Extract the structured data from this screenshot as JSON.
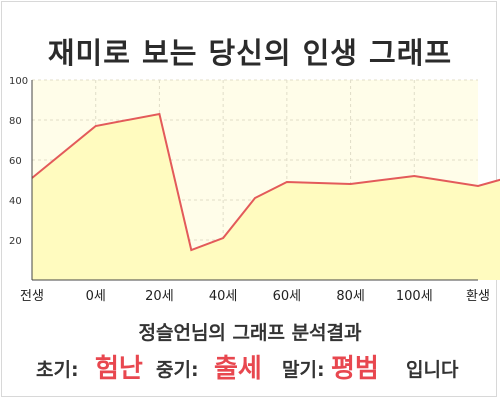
{
  "title": "재미로 보는 당신의 인생 그래프",
  "chart_data": {
    "type": "area",
    "x_ticks": [
      "전생",
      "0세",
      "20세",
      "40세",
      "60세",
      "80세",
      "100세",
      "환생"
    ],
    "y_ticks": [
      20,
      40,
      60,
      80,
      100
    ],
    "ylim": [
      0,
      100
    ],
    "x": [
      0,
      1,
      2,
      2.5,
      3,
      3.5,
      4,
      5,
      6,
      7,
      8
    ],
    "values": [
      51,
      77,
      83,
      15,
      21,
      41,
      49,
      48,
      52,
      47,
      56
    ],
    "grid": true,
    "colors": {
      "line": "#e35a5a",
      "fill": "#fffbbf",
      "plot_bg": "#fffde9",
      "grid": "#e0ddc8"
    }
  },
  "result": {
    "title": "정슬언님의 그래프 분석결과",
    "early_label": "초기:",
    "early_value": "험난",
    "mid_label": "중기:",
    "mid_value": "출세",
    "late_label": "말기:",
    "late_value": "평범",
    "ending": "입니다"
  }
}
